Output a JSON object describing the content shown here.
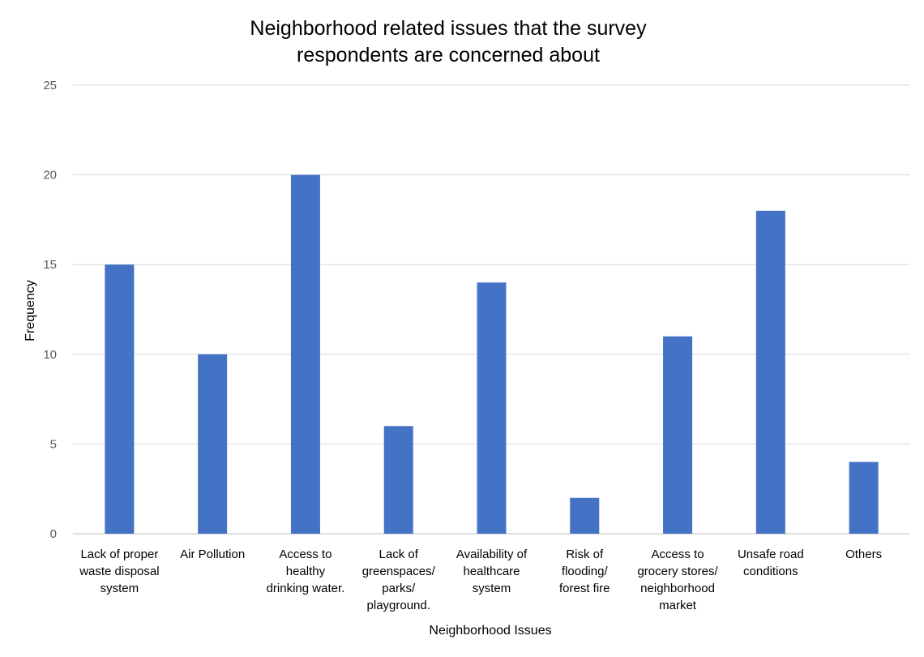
{
  "chart_data": {
    "type": "bar",
    "title": [
      "Neighborhood related issues that the survey",
      "respondents are concerned about"
    ],
    "xlabel": "Neighborhood Issues",
    "ylabel": "Frequency",
    "ylim": [
      0,
      25
    ],
    "yticks": [
      "0",
      "5",
      "10",
      "15",
      "20",
      "25"
    ],
    "grid": true,
    "legend": "none",
    "bar_color": "#4472c4",
    "categories": [
      [
        "Lack of proper",
        "waste disposal",
        "system"
      ],
      [
        "Air Pollution"
      ],
      [
        "Access to",
        "healthy",
        "drinking water."
      ],
      [
        "Lack of",
        "greenspaces/",
        "parks/",
        "playground."
      ],
      [
        "Availability of",
        "healthcare",
        "system"
      ],
      [
        "Risk of",
        "flooding/",
        "forest fire"
      ],
      [
        "Access to",
        "grocery stores/",
        "neighborhood",
        "market"
      ],
      [
        "Unsafe road",
        "conditions"
      ],
      [
        "Others"
      ]
    ],
    "values": [
      15,
      10,
      20,
      6,
      14,
      2,
      11,
      18,
      4
    ]
  }
}
